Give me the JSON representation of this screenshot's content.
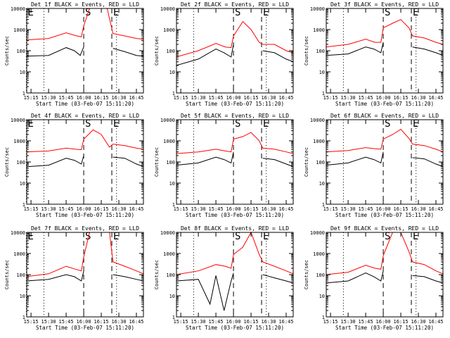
{
  "colors": {
    "events": "#000000",
    "lld": "#ff0000",
    "axes": "#000000",
    "background": "#ffffff"
  },
  "common": {
    "ylabel": "Counts/sec",
    "xlabel": "Start Time (03-Feb-07 15:11:20)",
    "x_ticks": [
      "15:15",
      "15:30",
      "15:45",
      "16:00",
      "16:15",
      "16:30",
      "16:45"
    ],
    "y_ticks": [
      "1",
      "10",
      "100",
      "1000",
      "10000"
    ],
    "marker_labels": {
      "E": "E",
      "S": "S"
    }
  },
  "chart_data": [
    {
      "type": "line",
      "title": "Det 1f BLACK = Events, RED = LLD",
      "xlim": [
        "15:11:20",
        "16:51:00"
      ],
      "ylim": [
        1,
        12000
      ],
      "y_scale": "log",
      "series": [
        {
          "name": "Events",
          "color": "#000000",
          "x": [
            "15:11",
            "15:30",
            "15:45",
            "15:52",
            "15:57",
            "16:00",
            "16:05",
            "16:15",
            "16:20",
            "16:25",
            "16:35",
            "16:45",
            "16:51"
          ],
          "values": [
            55,
            60,
            140,
            100,
            60,
            150,
            null,
            null,
            null,
            130,
            90,
            60,
            55
          ]
        },
        {
          "name": "LLD",
          "color": "#ff0000",
          "x": [
            "15:11",
            "15:30",
            "15:45",
            "15:53",
            "15:58",
            "16:00",
            "16:05",
            "16:15",
            "16:20",
            "16:25",
            "16:35",
            "16:45",
            "16:51"
          ],
          "values": [
            320,
            380,
            700,
            520,
            450,
            1500,
            10000,
            10000,
            10000,
            650,
            500,
            380,
            350
          ]
        }
      ],
      "markers": [
        {
          "label": "E",
          "time": "15:11",
          "style": "dotted"
        },
        {
          "label": "",
          "time": "15:26",
          "style": "dotted"
        },
        {
          "label": "S",
          "time": "16:00",
          "style": "dashed"
        },
        {
          "label": "E",
          "time": "16:24",
          "style": "dashed"
        },
        {
          "label": "",
          "time": "16:28",
          "style": "dotted"
        }
      ]
    },
    {
      "type": "line",
      "title": "Det 2f BLACK = Events, RED = LLD",
      "xlim": [
        "15:11:20",
        "16:51:00"
      ],
      "ylim": [
        1,
        12000
      ],
      "y_scale": "log",
      "series": [
        {
          "name": "Events",
          "color": "#000000",
          "x": [
            "15:11",
            "15:30",
            "15:45",
            "15:52",
            "15:58",
            "16:00",
            "16:05",
            "16:15",
            "16:22",
            "16:25",
            "16:35",
            "16:45",
            "16:51"
          ],
          "values": [
            20,
            40,
            120,
            80,
            50,
            200,
            null,
            null,
            null,
            100,
            80,
            40,
            30
          ]
        },
        {
          "name": "LLD",
          "color": "#ff0000",
          "x": [
            "15:11",
            "15:30",
            "15:45",
            "15:53",
            "15:58",
            "16:00",
            "16:08",
            "16:15",
            "16:22",
            "16:25",
            "16:35",
            "16:45",
            "16:51"
          ],
          "values": [
            50,
            100,
            220,
            150,
            140,
            500,
            2400,
            1000,
            250,
            200,
            200,
            100,
            80
          ]
        }
      ],
      "markers": [
        {
          "label": "",
          "time": "15:26",
          "style": "dotted"
        },
        {
          "label": "S",
          "time": "16:00",
          "style": "dashed"
        },
        {
          "label": "E",
          "time": "16:24",
          "style": "dashed"
        },
        {
          "label": "",
          "time": "16:28",
          "style": "dotted"
        }
      ]
    },
    {
      "type": "line",
      "title": "Det 3f BLACK = Events, RED = LLD",
      "xlim": [
        "15:11:20",
        "16:51:00"
      ],
      "ylim": [
        1,
        12000
      ],
      "y_scale": "log",
      "series": [
        {
          "name": "Events",
          "color": "#000000",
          "x": [
            "15:11",
            "15:30",
            "15:45",
            "15:52",
            "15:58",
            "16:00",
            "16:05",
            "16:15",
            "16:22",
            "16:25",
            "16:35",
            "16:45",
            "16:51"
          ],
          "values": [
            60,
            70,
            150,
            120,
            80,
            250,
            null,
            null,
            null,
            150,
            120,
            80,
            60
          ]
        },
        {
          "name": "LLD",
          "color": "#ff0000",
          "x": [
            "15:11",
            "15:30",
            "15:45",
            "15:53",
            "15:58",
            "16:00",
            "16:08",
            "16:15",
            "16:22",
            "16:25",
            "16:35",
            "16:45",
            "16:51"
          ],
          "values": [
            150,
            200,
            350,
            250,
            250,
            1200,
            2000,
            3000,
            1200,
            500,
            400,
            250,
            200
          ]
        }
      ],
      "markers": [
        {
          "label": "",
          "time": "15:26",
          "style": "dotted"
        },
        {
          "label": "S",
          "time": "16:00",
          "style": "dashed"
        },
        {
          "label": "E",
          "time": "16:24",
          "style": "dashed"
        },
        {
          "label": "",
          "time": "16:28",
          "style": "dotted"
        }
      ]
    },
    {
      "type": "line",
      "title": "Det 4f BLACK = Events, RED = LLD",
      "xlim": [
        "15:11:20",
        "16:51:00"
      ],
      "ylim": [
        1,
        12000
      ],
      "y_scale": "log",
      "series": [
        {
          "name": "Events",
          "color": "#000000",
          "x": [
            "15:11",
            "15:30",
            "15:45",
            "15:52",
            "15:58",
            "16:00",
            "16:05",
            "16:15",
            "16:22",
            "16:25",
            "16:35",
            "16:45",
            "16:51"
          ],
          "values": [
            60,
            70,
            150,
            120,
            80,
            200,
            null,
            null,
            null,
            170,
            150,
            80,
            60
          ]
        },
        {
          "name": "LLD",
          "color": "#ff0000",
          "x": [
            "15:11",
            "15:30",
            "15:45",
            "15:53",
            "15:58",
            "16:00",
            "16:08",
            "16:15",
            "16:22",
            "16:25",
            "16:35",
            "16:45",
            "16:51"
          ],
          "values": [
            300,
            330,
            450,
            400,
            380,
            1200,
            3300,
            2000,
            500,
            700,
            600,
            450,
            400
          ]
        }
      ],
      "markers": [
        {
          "label": "E",
          "time": "15:11",
          "style": "dotted"
        },
        {
          "label": "",
          "time": "15:26",
          "style": "dotted"
        },
        {
          "label": "S",
          "time": "16:00",
          "style": "dashed"
        },
        {
          "label": "E",
          "time": "16:24",
          "style": "dashed"
        },
        {
          "label": "",
          "time": "16:28",
          "style": "dotted"
        }
      ]
    },
    {
      "type": "line",
      "title": "Det 5f BLACK = Events, RED = LLD",
      "xlim": [
        "15:11:20",
        "16:51:00"
      ],
      "ylim": [
        1,
        12000
      ],
      "y_scale": "log",
      "series": [
        {
          "name": "Events",
          "color": "#000000",
          "x": [
            "15:11",
            "15:30",
            "15:45",
            "15:52",
            "15:58",
            "16:00",
            "16:05",
            "16:15",
            "16:22",
            "16:25",
            "16:35",
            "16:45",
            "16:51"
          ],
          "values": [
            70,
            90,
            170,
            130,
            90,
            300,
            null,
            null,
            null,
            150,
            130,
            80,
            60
          ]
        },
        {
          "name": "LLD",
          "color": "#ff0000",
          "x": [
            "15:11",
            "15:30",
            "15:45",
            "15:53",
            "15:58",
            "16:00",
            "16:08",
            "16:15",
            "16:22",
            "16:25",
            "16:35",
            "16:45",
            "16:51"
          ],
          "values": [
            250,
            300,
            400,
            330,
            300,
            1200,
            1600,
            2500,
            1000,
            450,
            400,
            300,
            250
          ]
        }
      ],
      "markers": [
        {
          "label": "",
          "time": "15:26",
          "style": "dotted"
        },
        {
          "label": "S",
          "time": "16:00",
          "style": "dashed"
        },
        {
          "label": "E",
          "time": "16:24",
          "style": "dashed"
        },
        {
          "label": "",
          "time": "16:28",
          "style": "dotted"
        }
      ]
    },
    {
      "type": "line",
      "title": "Det 6f BLACK = Events, RED = LLD",
      "xlim": [
        "15:11:20",
        "16:51:00"
      ],
      "ylim": [
        1,
        12000
      ],
      "y_scale": "log",
      "series": [
        {
          "name": "Events",
          "color": "#000000",
          "x": [
            "15:11",
            "15:30",
            "15:45",
            "15:52",
            "15:58",
            "16:00",
            "16:05",
            "16:15",
            "16:22",
            "16:25",
            "16:35",
            "16:45",
            "16:51"
          ],
          "values": [
            70,
            90,
            170,
            130,
            90,
            300,
            null,
            null,
            null,
            160,
            140,
            80,
            60
          ]
        },
        {
          "name": "LLD",
          "color": "#ff0000",
          "x": [
            "15:11",
            "15:30",
            "15:45",
            "15:53",
            "15:58",
            "16:00",
            "16:08",
            "16:15",
            "16:22",
            "16:25",
            "16:35",
            "16:45",
            "16:51"
          ],
          "values": [
            300,
            350,
            480,
            420,
            400,
            1200,
            2000,
            3500,
            1300,
            700,
            600,
            400,
            300
          ]
        }
      ],
      "markers": [
        {
          "label": "",
          "time": "15:26",
          "style": "dotted"
        },
        {
          "label": "S",
          "time": "16:00",
          "style": "dashed"
        },
        {
          "label": "E",
          "time": "16:24",
          "style": "dashed"
        },
        {
          "label": "",
          "time": "16:28",
          "style": "dotted"
        }
      ]
    },
    {
      "type": "line",
      "title": "Det 7f BLACK = Events, RED = LLD",
      "xlim": [
        "15:11:20",
        "16:51:00"
      ],
      "ylim": [
        1,
        12000
      ],
      "y_scale": "log",
      "series": [
        {
          "name": "Events",
          "color": "#000000",
          "x": [
            "15:11",
            "15:30",
            "15:45",
            "15:52",
            "15:58",
            "16:00",
            "16:05",
            "16:15",
            "16:22",
            "16:25",
            "16:35",
            "16:45",
            "16:51"
          ],
          "values": [
            50,
            60,
            100,
            80,
            50,
            150,
            null,
            null,
            null,
            100,
            80,
            60,
            50
          ]
        },
        {
          "name": "LLD",
          "color": "#ff0000",
          "x": [
            "15:11",
            "15:30",
            "15:45",
            "15:53",
            "15:58",
            "16:00",
            "16:05",
            "16:15",
            "16:22",
            "16:25",
            "16:35",
            "16:45",
            "16:51"
          ],
          "values": [
            80,
            110,
            250,
            180,
            150,
            700,
            10000,
            10000,
            10000,
            400,
            250,
            150,
            110
          ]
        }
      ],
      "markers": [
        {
          "label": "E",
          "time": "15:11",
          "style": "dotted"
        },
        {
          "label": "",
          "time": "15:26",
          "style": "dotted"
        },
        {
          "label": "S",
          "time": "16:00",
          "style": "dashed"
        },
        {
          "label": "E",
          "time": "16:24",
          "style": "dashed"
        },
        {
          "label": "",
          "time": "16:28",
          "style": "dotted"
        }
      ]
    },
    {
      "type": "line",
      "title": "Det 8f BLACK = Events, RED = LLD",
      "xlim": [
        "15:11:20",
        "16:51:00"
      ],
      "ylim": [
        1,
        12000
      ],
      "y_scale": "log",
      "series": [
        {
          "name": "Events",
          "color": "#000000",
          "x": [
            "15:11",
            "15:30",
            "15:40",
            "15:45",
            "15:52",
            "15:58",
            "16:00",
            "16:05",
            "16:15",
            "16:22",
            "16:25",
            "16:35",
            "16:45",
            "16:51"
          ],
          "values": [
            50,
            60,
            4,
            90,
            2,
            50,
            120,
            null,
            null,
            null,
            100,
            70,
            50,
            40
          ]
        },
        {
          "name": "LLD",
          "color": "#ff0000",
          "x": [
            "15:11",
            "15:30",
            "15:45",
            "15:53",
            "15:58",
            "16:00",
            "16:08",
            "16:15",
            "16:22",
            "16:25",
            "16:35",
            "16:45",
            "16:51"
          ],
          "values": [
            100,
            150,
            300,
            250,
            200,
            900,
            2000,
            10000,
            900,
            400,
            250,
            150,
            110
          ]
        }
      ],
      "markers": [
        {
          "label": "",
          "time": "15:26",
          "style": "dotted"
        },
        {
          "label": "S",
          "time": "16:00",
          "style": "dashed"
        },
        {
          "label": "E",
          "time": "16:24",
          "style": "dashed"
        },
        {
          "label": "",
          "time": "16:28",
          "style": "dotted"
        }
      ]
    },
    {
      "type": "line",
      "title": "Det 9f BLACK = Events, RED = LLD",
      "xlim": [
        "15:11:20",
        "16:51:00"
      ],
      "ylim": [
        1,
        12000
      ],
      "y_scale": "log",
      "series": [
        {
          "name": "Events",
          "color": "#000000",
          "x": [
            "15:11",
            "15:30",
            "15:45",
            "15:52",
            "15:58",
            "16:00",
            "16:05",
            "16:15",
            "16:22",
            "16:25",
            "16:35",
            "16:45",
            "16:51"
          ],
          "values": [
            40,
            50,
            120,
            80,
            50,
            150,
            null,
            null,
            null,
            90,
            80,
            50,
            40
          ]
        },
        {
          "name": "LLD",
          "color": "#ff0000",
          "x": [
            "15:11",
            "15:30",
            "15:45",
            "15:53",
            "15:58",
            "16:00",
            "16:08",
            "16:15",
            "16:22",
            "16:25",
            "16:35",
            "16:45",
            "16:51"
          ],
          "values": [
            100,
            130,
            280,
            200,
            180,
            800,
            10000,
            10000,
            1200,
            400,
            300,
            150,
            110
          ]
        }
      ],
      "markers": [
        {
          "label": "",
          "time": "15:26",
          "style": "dotted"
        },
        {
          "label": "S",
          "time": "16:00",
          "style": "dashed"
        },
        {
          "label": "E",
          "time": "16:24",
          "style": "dashed"
        },
        {
          "label": "",
          "time": "16:28",
          "style": "dotted"
        }
      ]
    }
  ]
}
